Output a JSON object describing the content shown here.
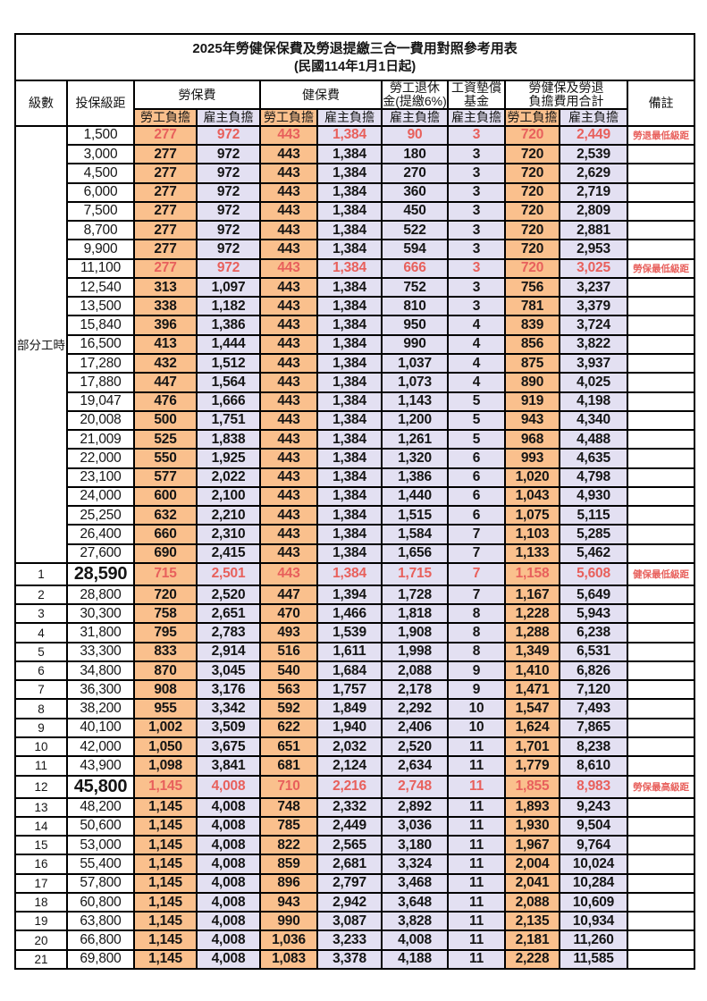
{
  "title": {
    "line1": "2025年勞健保保費及勞退提繳三合一費用對照參考用表",
    "line2": "(民國114年1月1日起)"
  },
  "header": {
    "level": "級數",
    "bracket": "投保級距",
    "labor_fee": "勞保費",
    "health_fee": "健保費",
    "pension_line1": "勞工退休",
    "pension_line2": "金(提繳6%)",
    "wage_fund_line1": "工資墊償",
    "wage_fund_line2": "基金",
    "total_line1": "勞健保及勞退",
    "total_line2": "負擔費用合計",
    "note": "備註",
    "employee_share": "勞工負擔",
    "employer_share": "雇主負擔"
  },
  "part_time_label": "部分工時",
  "colors": {
    "orange": "#FAC08D",
    "lavender": "#E3E0F2",
    "red": "#E8605C",
    "border": "#000000",
    "text": "#151515"
  },
  "rows": [
    {
      "level": "",
      "bracket": "1,500",
      "values": [
        "277",
        "972",
        "443",
        "1,384",
        "90",
        "3",
        "720",
        "2,449"
      ],
      "note": "勞退最低級距",
      "red": true,
      "bracket_bold": false
    },
    {
      "level": "",
      "bracket": "3,000",
      "values": [
        "277",
        "972",
        "443",
        "1,384",
        "180",
        "3",
        "720",
        "2,539"
      ],
      "note": "",
      "red": false,
      "bracket_bold": false
    },
    {
      "level": "",
      "bracket": "4,500",
      "values": [
        "277",
        "972",
        "443",
        "1,384",
        "270",
        "3",
        "720",
        "2,629"
      ],
      "note": "",
      "red": false,
      "bracket_bold": false
    },
    {
      "level": "",
      "bracket": "6,000",
      "values": [
        "277",
        "972",
        "443",
        "1,384",
        "360",
        "3",
        "720",
        "2,719"
      ],
      "note": "",
      "red": false,
      "bracket_bold": false
    },
    {
      "level": "",
      "bracket": "7,500",
      "values": [
        "277",
        "972",
        "443",
        "1,384",
        "450",
        "3",
        "720",
        "2,809"
      ],
      "note": "",
      "red": false,
      "bracket_bold": false
    },
    {
      "level": "",
      "bracket": "8,700",
      "values": [
        "277",
        "972",
        "443",
        "1,384",
        "522",
        "3",
        "720",
        "2,881"
      ],
      "note": "",
      "red": false,
      "bracket_bold": false
    },
    {
      "level": "",
      "bracket": "9,900",
      "values": [
        "277",
        "972",
        "443",
        "1,384",
        "594",
        "3",
        "720",
        "2,953"
      ],
      "note": "",
      "red": false,
      "bracket_bold": false
    },
    {
      "level": "",
      "bracket": "11,100",
      "values": [
        "277",
        "972",
        "443",
        "1,384",
        "666",
        "3",
        "720",
        "3,025"
      ],
      "note": "勞保最低級距",
      "red": true,
      "bracket_bold": false
    },
    {
      "level": "",
      "bracket": "12,540",
      "values": [
        "313",
        "1,097",
        "443",
        "1,384",
        "752",
        "3",
        "756",
        "3,237"
      ],
      "note": "",
      "red": false,
      "bracket_bold": false
    },
    {
      "level": "",
      "bracket": "13,500",
      "values": [
        "338",
        "1,182",
        "443",
        "1,384",
        "810",
        "3",
        "781",
        "3,379"
      ],
      "note": "",
      "red": false,
      "bracket_bold": false
    },
    {
      "level": "",
      "bracket": "15,840",
      "values": [
        "396",
        "1,386",
        "443",
        "1,384",
        "950",
        "4",
        "839",
        "3,724"
      ],
      "note": "",
      "red": false,
      "bracket_bold": false
    },
    {
      "level": "",
      "bracket": "16,500",
      "values": [
        "413",
        "1,444",
        "443",
        "1,384",
        "990",
        "4",
        "856",
        "3,822"
      ],
      "note": "",
      "red": false,
      "bracket_bold": false
    },
    {
      "level": "",
      "bracket": "17,280",
      "values": [
        "432",
        "1,512",
        "443",
        "1,384",
        "1,037",
        "4",
        "875",
        "3,937"
      ],
      "note": "",
      "red": false,
      "bracket_bold": false
    },
    {
      "level": "",
      "bracket": "17,880",
      "values": [
        "447",
        "1,564",
        "443",
        "1,384",
        "1,073",
        "4",
        "890",
        "4,025"
      ],
      "note": "",
      "red": false,
      "bracket_bold": false
    },
    {
      "level": "",
      "bracket": "19,047",
      "values": [
        "476",
        "1,666",
        "443",
        "1,384",
        "1,143",
        "5",
        "919",
        "4,198"
      ],
      "note": "",
      "red": false,
      "bracket_bold": false
    },
    {
      "level": "",
      "bracket": "20,008",
      "values": [
        "500",
        "1,751",
        "443",
        "1,384",
        "1,200",
        "5",
        "943",
        "4,340"
      ],
      "note": "",
      "red": false,
      "bracket_bold": false
    },
    {
      "level": "",
      "bracket": "21,009",
      "values": [
        "525",
        "1,838",
        "443",
        "1,384",
        "1,261",
        "5",
        "968",
        "4,488"
      ],
      "note": "",
      "red": false,
      "bracket_bold": false
    },
    {
      "level": "",
      "bracket": "22,000",
      "values": [
        "550",
        "1,925",
        "443",
        "1,384",
        "1,320",
        "6",
        "993",
        "4,635"
      ],
      "note": "",
      "red": false,
      "bracket_bold": false
    },
    {
      "level": "",
      "bracket": "23,100",
      "values": [
        "577",
        "2,022",
        "443",
        "1,384",
        "1,386",
        "6",
        "1,020",
        "4,798"
      ],
      "note": "",
      "red": false,
      "bracket_bold": false
    },
    {
      "level": "",
      "bracket": "24,000",
      "values": [
        "600",
        "2,100",
        "443",
        "1,384",
        "1,440",
        "6",
        "1,043",
        "4,930"
      ],
      "note": "",
      "red": false,
      "bracket_bold": false
    },
    {
      "level": "",
      "bracket": "25,250",
      "values": [
        "632",
        "2,210",
        "443",
        "1,384",
        "1,515",
        "6",
        "1,075",
        "5,115"
      ],
      "note": "",
      "red": false,
      "bracket_bold": false
    },
    {
      "level": "",
      "bracket": "26,400",
      "values": [
        "660",
        "2,310",
        "443",
        "1,384",
        "1,584",
        "7",
        "1,103",
        "5,285"
      ],
      "note": "",
      "red": false,
      "bracket_bold": false
    },
    {
      "level": "",
      "bracket": "27,600",
      "values": [
        "690",
        "2,415",
        "443",
        "1,384",
        "1,656",
        "7",
        "1,133",
        "5,462"
      ],
      "note": "",
      "red": false,
      "bracket_bold": false
    },
    {
      "level": "1",
      "bracket": "28,590",
      "values": [
        "715",
        "2,501",
        "443",
        "1,384",
        "1,715",
        "7",
        "1,158",
        "5,608"
      ],
      "note": "健保最低級距",
      "red": true,
      "bracket_bold": true
    },
    {
      "level": "2",
      "bracket": "28,800",
      "values": [
        "720",
        "2,520",
        "447",
        "1,394",
        "1,728",
        "7",
        "1,167",
        "5,649"
      ],
      "note": "",
      "red": false,
      "bracket_bold": false
    },
    {
      "level": "3",
      "bracket": "30,300",
      "values": [
        "758",
        "2,651",
        "470",
        "1,466",
        "1,818",
        "8",
        "1,228",
        "5,943"
      ],
      "note": "",
      "red": false,
      "bracket_bold": false
    },
    {
      "level": "4",
      "bracket": "31,800",
      "values": [
        "795",
        "2,783",
        "493",
        "1,539",
        "1,908",
        "8",
        "1,288",
        "6,238"
      ],
      "note": "",
      "red": false,
      "bracket_bold": false
    },
    {
      "level": "5",
      "bracket": "33,300",
      "values": [
        "833",
        "2,914",
        "516",
        "1,611",
        "1,998",
        "8",
        "1,349",
        "6,531"
      ],
      "note": "",
      "red": false,
      "bracket_bold": false
    },
    {
      "level": "6",
      "bracket": "34,800",
      "values": [
        "870",
        "3,045",
        "540",
        "1,684",
        "2,088",
        "9",
        "1,410",
        "6,826"
      ],
      "note": "",
      "red": false,
      "bracket_bold": false
    },
    {
      "level": "7",
      "bracket": "36,300",
      "values": [
        "908",
        "3,176",
        "563",
        "1,757",
        "2,178",
        "9",
        "1,471",
        "7,120"
      ],
      "note": "",
      "red": false,
      "bracket_bold": false
    },
    {
      "level": "8",
      "bracket": "38,200",
      "values": [
        "955",
        "3,342",
        "592",
        "1,849",
        "2,292",
        "10",
        "1,547",
        "7,493"
      ],
      "note": "",
      "red": false,
      "bracket_bold": false
    },
    {
      "level": "9",
      "bracket": "40,100",
      "values": [
        "1,002",
        "3,509",
        "622",
        "1,940",
        "2,406",
        "10",
        "1,624",
        "7,865"
      ],
      "note": "",
      "red": false,
      "bracket_bold": false
    },
    {
      "level": "10",
      "bracket": "42,000",
      "values": [
        "1,050",
        "3,675",
        "651",
        "2,032",
        "2,520",
        "11",
        "1,701",
        "8,238"
      ],
      "note": "",
      "red": false,
      "bracket_bold": false
    },
    {
      "level": "11",
      "bracket": "43,900",
      "values": [
        "1,098",
        "3,841",
        "681",
        "2,124",
        "2,634",
        "11",
        "1,779",
        "8,610"
      ],
      "note": "",
      "red": false,
      "bracket_bold": false
    },
    {
      "level": "12",
      "bracket": "45,800",
      "values": [
        "1,145",
        "4,008",
        "710",
        "2,216",
        "2,748",
        "11",
        "1,855",
        "8,983"
      ],
      "note": "勞保最高級距",
      "red": true,
      "bracket_bold": true
    },
    {
      "level": "13",
      "bracket": "48,200",
      "values": [
        "1,145",
        "4,008",
        "748",
        "2,332",
        "2,892",
        "11",
        "1,893",
        "9,243"
      ],
      "note": "",
      "red": false,
      "bracket_bold": false
    },
    {
      "level": "14",
      "bracket": "50,600",
      "values": [
        "1,145",
        "4,008",
        "785",
        "2,449",
        "3,036",
        "11",
        "1,930",
        "9,504"
      ],
      "note": "",
      "red": false,
      "bracket_bold": false
    },
    {
      "level": "15",
      "bracket": "53,000",
      "values": [
        "1,145",
        "4,008",
        "822",
        "2,565",
        "3,180",
        "11",
        "1,967",
        "9,764"
      ],
      "note": "",
      "red": false,
      "bracket_bold": false
    },
    {
      "level": "16",
      "bracket": "55,400",
      "values": [
        "1,145",
        "4,008",
        "859",
        "2,681",
        "3,324",
        "11",
        "2,004",
        "10,024"
      ],
      "note": "",
      "red": false,
      "bracket_bold": false
    },
    {
      "level": "17",
      "bracket": "57,800",
      "values": [
        "1,145",
        "4,008",
        "896",
        "2,797",
        "3,468",
        "11",
        "2,041",
        "10,284"
      ],
      "note": "",
      "red": false,
      "bracket_bold": false
    },
    {
      "level": "18",
      "bracket": "60,800",
      "values": [
        "1,145",
        "4,008",
        "943",
        "2,942",
        "3,648",
        "11",
        "2,088",
        "10,609"
      ],
      "note": "",
      "red": false,
      "bracket_bold": false
    },
    {
      "level": "19",
      "bracket": "63,800",
      "values": [
        "1,145",
        "4,008",
        "990",
        "3,087",
        "3,828",
        "11",
        "2,135",
        "10,934"
      ],
      "note": "",
      "red": false,
      "bracket_bold": false
    },
    {
      "level": "20",
      "bracket": "66,800",
      "values": [
        "1,145",
        "4,008",
        "1,036",
        "3,233",
        "4,008",
        "11",
        "2,181",
        "11,260"
      ],
      "note": "",
      "red": false,
      "bracket_bold": false
    },
    {
      "level": "21",
      "bracket": "69,800",
      "values": [
        "1,145",
        "4,008",
        "1,083",
        "3,378",
        "4,188",
        "11",
        "2,228",
        "11,585"
      ],
      "note": "",
      "red": false,
      "bracket_bold": false
    }
  ]
}
